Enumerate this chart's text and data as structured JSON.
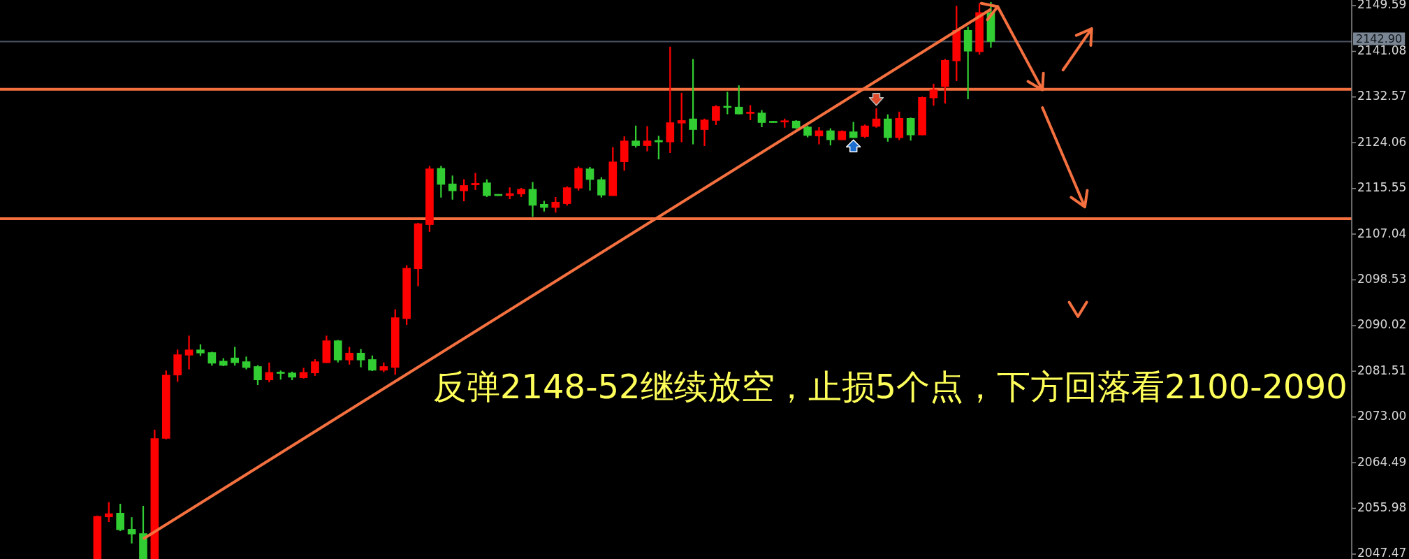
{
  "chart_data": {
    "type": "candlestick",
    "categories": [
      null,
      null,
      null,
      null,
      null,
      null,
      null,
      null,
      null,
      null,
      null,
      null,
      null,
      null,
      null,
      null,
      null,
      null,
      null,
      null,
      null,
      null,
      null,
      null,
      null,
      null,
      null,
      null,
      null,
      null,
      null,
      null,
      null,
      null,
      null,
      null,
      null,
      null,
      null,
      null,
      null,
      null,
      null,
      null,
      null,
      null,
      null,
      null,
      null,
      null,
      null,
      null,
      null,
      null,
      null,
      null,
      null,
      null,
      null,
      null,
      null,
      null,
      null,
      null,
      null,
      null,
      null,
      null,
      null,
      null,
      null,
      null,
      null,
      null,
      null,
      null,
      null,
      null,
      null,
      null,
      null,
      null,
      null,
      null,
      null,
      null,
      null,
      null,
      null,
      null,
      null,
      null,
      null,
      null,
      null,
      null,
      null,
      null,
      null,
      null,
      null,
      null,
      null,
      null,
      null,
      null,
      null,
      null,
      null,
      null,
      null,
      null,
      null,
      null,
      null,
      null,
      null,
      null
    ],
    "ohlc": [
      null,
      null,
      null,
      null,
      null,
      null,
      null,
      null,
      [
        2046.6,
        2054.6,
        2046.6,
        2054.5
      ],
      [
        2054.4,
        2057.1,
        2053.5,
        2055.0
      ],
      [
        2055.1,
        2056.8,
        2051.8,
        2052.0
      ],
      [
        2052.1,
        2054.3,
        2049.5,
        2051.2
      ],
      [
        2051.3,
        2056.4,
        2046.6,
        2046.6
      ],
      [
        2046.6,
        2070.6,
        2046.6,
        2069.0
      ],
      [
        2069.0,
        2081.6,
        2068.9,
        2080.8
      ],
      [
        2080.8,
        2085.5,
        2079.6,
        2084.6
      ],
      [
        2084.5,
        2088.1,
        2081.9,
        2085.5
      ],
      [
        2085.5,
        2086.5,
        2084.4,
        2084.9
      ],
      [
        2085.0,
        2085.1,
        2082.6,
        2083.0
      ],
      [
        2083.4,
        2083.9,
        2082.5,
        2082.6
      ],
      [
        2084.0,
        2086.0,
        2082.6,
        2083.1
      ],
      [
        2083.3,
        2084.2,
        2081.9,
        2082.2
      ],
      [
        2082.4,
        2082.6,
        2079.0,
        2079.9
      ],
      [
        2079.9,
        2083.1,
        2079.5,
        2081.3
      ],
      [
        2081.3,
        2081.6,
        2080.0,
        2081.1
      ],
      [
        2081.2,
        2081.4,
        2079.9,
        2080.4
      ],
      [
        2080.3,
        2082.1,
        2080.2,
        2081.3
      ],
      [
        2081.2,
        2083.7,
        2080.7,
        2083.3
      ],
      [
        2083.1,
        2088.1,
        2083.1,
        2087.2
      ],
      [
        2087.2,
        2087.3,
        2083.2,
        2083.6
      ],
      [
        2083.6,
        2086.0,
        2082.8,
        2084.9
      ],
      [
        2084.9,
        2085.6,
        2082.3,
        2083.6
      ],
      [
        2083.7,
        2084.4,
        2081.6,
        2081.7
      ],
      [
        2081.7,
        2083.1,
        2081.4,
        2082.4
      ],
      [
        2082.2,
        2093.0,
        2080.9,
        2091.5
      ],
      [
        2091.3,
        2101.2,
        2090.2,
        2100.7
      ],
      [
        2100.6,
        2109.1,
        2097.4,
        2109.0
      ],
      [
        2108.8,
        2119.7,
        2107.5,
        2119.2
      ],
      [
        2119.3,
        2119.7,
        2113.9,
        2116.3
      ],
      [
        2116.4,
        2117.9,
        2113.5,
        2115.1
      ],
      [
        2115.1,
        2117.2,
        2113.2,
        2116.1
      ],
      [
        2116.2,
        2118.4,
        2115.3,
        2116.5
      ],
      [
        2116.6,
        2117.2,
        2114.0,
        2114.2
      ],
      [
        2114.3,
        2114.3,
        2114.2,
        2114.2
      ],
      [
        2114.2,
        2115.7,
        2113.6,
        2114.6
      ],
      [
        2114.5,
        2115.6,
        2114.0,
        2115.4
      ],
      [
        2115.4,
        2116.7,
        2110.3,
        2112.4
      ],
      [
        2112.6,
        2113.2,
        2111.3,
        2112.0
      ],
      [
        2112.0,
        2113.9,
        2111.1,
        2113.0
      ],
      [
        2112.7,
        2115.9,
        2112.4,
        2115.7
      ],
      [
        2115.6,
        2119.6,
        2115.2,
        2119.3
      ],
      [
        2119.2,
        2119.5,
        2115.2,
        2117.2
      ],
      [
        2117.2,
        2117.6,
        2113.9,
        2114.3
      ],
      [
        2114.2,
        2123.2,
        2114.2,
        2120.5
      ],
      [
        2120.5,
        2125.2,
        2118.9,
        2124.4
      ],
      [
        2124.4,
        2127.2,
        2123.2,
        2123.5
      ],
      [
        2123.5,
        2127.1,
        2122.5,
        2124.4
      ],
      [
        2124.5,
        2125.3,
        2121.0,
        2124.2
      ],
      [
        2124.2,
        2141.9,
        2122.2,
        2127.8
      ],
      [
        2127.7,
        2133.3,
        2124.2,
        2128.2
      ],
      [
        2128.5,
        2139.6,
        2123.8,
        2126.5
      ],
      [
        2126.5,
        2128.5,
        2123.5,
        2128.3
      ],
      [
        2128.2,
        2131.0,
        2127.4,
        2130.8
      ],
      [
        2130.8,
        2133.5,
        2129.4,
        2130.6
      ],
      [
        2130.7,
        2134.7,
        2129.4,
        2129.4
      ],
      [
        2129.5,
        2131.0,
        2128.3,
        2129.7
      ],
      [
        2129.6,
        2130.1,
        2127.0,
        2127.8
      ],
      [
        2128.0,
        2128.0,
        2127.8,
        2127.8
      ],
      [
        2127.9,
        2128.5,
        2126.9,
        2128.1
      ],
      [
        2128.1,
        2128.2,
        2126.7,
        2126.8
      ],
      [
        2127.0,
        2127.2,
        2125.1,
        2125.4
      ],
      [
        2125.3,
        2126.9,
        2123.8,
        2126.3
      ],
      [
        2126.3,
        2126.7,
        2123.6,
        2124.6
      ],
      [
        2124.6,
        2126.3,
        2124.6,
        2126.2
      ],
      [
        2126.1,
        2127.9,
        2125.0,
        2125.0
      ],
      [
        2125.2,
        2127.4,
        2125.0,
        2127.2
      ],
      [
        2127.1,
        2130.4,
        2126.9,
        2128.5
      ],
      [
        2128.5,
        2129.3,
        2124.3,
        2125.0
      ],
      [
        2125.0,
        2129.8,
        2124.6,
        2128.6
      ],
      [
        2128.6,
        2128.7,
        2124.5,
        2125.5
      ],
      [
        2125.5,
        2132.6,
        2125.5,
        2132.5
      ],
      [
        2132.4,
        2135.0,
        2131.0,
        2133.9
      ],
      [
        2134.5,
        2139.6,
        2131.4,
        2139.4
      ],
      [
        2139.3,
        2149.5,
        2135.6,
        2145.0
      ],
      [
        2145.0,
        2145.6,
        2132.2,
        2141.1
      ],
      [
        2141.0,
        2150.0,
        2140.5,
        2148.3
      ],
      [
        2148.3,
        2150.2,
        2141.8,
        2142.9
      ],
      null,
      null,
      null,
      null,
      null,
      null,
      null,
      null,
      null,
      null,
      null,
      null,
      null,
      null,
      null,
      null,
      null,
      null,
      null,
      null,
      null,
      null,
      null,
      null,
      null,
      null,
      null,
      null,
      null,
      null,
      null
    ],
    "colors": [
      null,
      null,
      null,
      null,
      null,
      null,
      null,
      null,
      "#ff0000",
      "#ff0000",
      "#32cd32",
      "#32cd32",
      "#32cd32",
      "#ff0000",
      "#ff0000",
      "#ff0000",
      "#ff0000",
      "#32cd32",
      "#32cd32",
      "#32cd32",
      "#32cd32",
      "#32cd32",
      "#32cd32",
      "#ff0000",
      "#32cd32",
      "#32cd32",
      "#ff0000",
      "#ff0000",
      "#ff0000",
      "#32cd32",
      "#ff0000",
      "#32cd32",
      "#32cd32",
      "#ff0000",
      "#ff0000",
      "#ff0000",
      "#ff0000",
      "#ff0000",
      "#32cd32",
      "#32cd32",
      "#ff0000",
      "#ff0000",
      "#32cd32",
      "#32cd32",
      "#ff0000",
      "#ff0000",
      "#32cd32",
      "#32cd32",
      "#ff0000",
      "#ff0000",
      "#ff0000",
      "#32cd32",
      "#32cd32",
      "#ff0000",
      "#ff0000",
      "#32cd32",
      "#ff0000",
      "#32cd32",
      "#ff0000",
      "#ff0000",
      "#32cd32",
      "#ff0000",
      "#ff0000",
      "#32cd32",
      "#32cd32",
      "#ff0000",
      "#32cd32",
      "#32cd32",
      "#ff0000",
      "#32cd32",
      "#32cd32",
      "#ff0000",
      "#32cd32",
      "#ff0000",
      "#32cd32",
      "#ff0000",
      "#ff0000",
      "#32cd32",
      "#ff0000",
      "#32cd32",
      "#ff0000",
      "#ff0000",
      "#ff0000",
      "#ff0000",
      "#32cd32",
      "#ff0000",
      "#32cd32",
      null,
      null,
      null,
      null,
      null,
      null,
      null,
      null,
      null,
      null,
      null,
      null,
      null,
      null,
      null,
      null,
      null,
      null,
      null,
      null,
      null,
      null,
      null,
      null,
      null,
      null,
      null,
      null,
      null,
      null,
      null
    ],
    "series": [
      {
        "type": "line",
        "color": "#f4703f",
        "values": [
          null,
          null,
          null,
          null,
          null,
          null,
          null,
          null,
          null,
          null,
          null,
          null,
          2050.3,
          null,
          null,
          null,
          null,
          null,
          null,
          null,
          null,
          null,
          null,
          null,
          null,
          null,
          null,
          null,
          null,
          null,
          null,
          null,
          null,
          null,
          null,
          null,
          null,
          null,
          null,
          null,
          null,
          null,
          null,
          null,
          null,
          null,
          null,
          null,
          null,
          null,
          null,
          null,
          null,
          null,
          null,
          null,
          null,
          null,
          null,
          null,
          null,
          null,
          null,
          null,
          null,
          null,
          null,
          null,
          null,
          null,
          null,
          null,
          null,
          null,
          null,
          null,
          null,
          null,
          null,
          null,
          null,
          null,
          null,
          null,
          null,
          null,
          2148.9,
          null,
          null,
          null,
          null,
          null,
          null,
          null,
          null,
          null,
          null,
          null,
          null,
          null,
          null,
          null,
          null,
          null,
          null,
          null,
          null,
          null,
          null,
          null,
          null,
          null,
          null,
          null,
          null,
          null,
          null,
          null
        ]
      }
    ],
    "ylim": [
      2046.56,
      2150.63
    ],
    "yticks": [
      2047.47,
      2055.98,
      2064.49,
      {
        "value": 2073.0,
        "label": "2073.00"
      },
      2081.51,
      2090.02,
      2098.53,
      2107.04,
      2115.55,
      2124.06,
      2132.57,
      2141.08,
      2149.59
    ],
    "tick_labels": "y",
    "grid": false,
    "legend": false,
    "ref_lines": [
      {
        "axis": "y",
        "value": 2142.9,
        "label": "2142.90",
        "color": "#4a5462"
      },
      {
        "axis": "y",
        "value": 2134.0,
        "color": "#f4703f"
      },
      {
        "axis": "y",
        "value": 2109.9,
        "color": "#f4703f"
      }
    ],
    "annotations": [
      "反弹2148-52继续放空，止损5个点，下方回落看2100-2090"
    ]
  }
}
